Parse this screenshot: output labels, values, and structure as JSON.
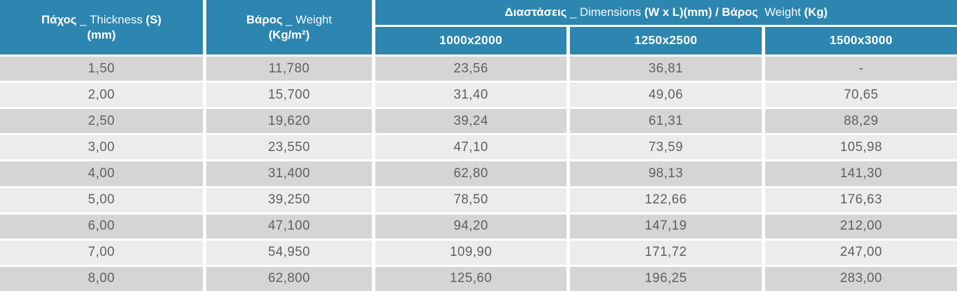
{
  "table": {
    "headers": {
      "thickness": {
        "line1": [
          {
            "t": "Πάχος",
            "b": true
          },
          {
            "t": " _ Thickness ",
            "b": false
          },
          {
            "t": "(S)",
            "b": true
          }
        ],
        "line2": [
          {
            "t": "(mm)",
            "b": true
          }
        ]
      },
      "weight": {
        "line1": [
          {
            "t": "Βάρος",
            "b": true
          },
          {
            "t": " _ Weight",
            "b": false
          }
        ],
        "line2": [
          {
            "t": "(Kg/m²)",
            "b": true
          }
        ]
      },
      "dimensions": {
        "line1": [
          {
            "t": "Διαστάσεις",
            "b": true
          },
          {
            "t": " _ Dimensions ",
            "b": false
          },
          {
            "t": "(W x L)(mm) / Βάρος",
            "b": true
          },
          {
            "t": "  Weight ",
            "b": false
          },
          {
            "t": "(Kg)",
            "b": true
          }
        ]
      }
    },
    "sub_headers": [
      "1000x2000",
      "1250x2500",
      "1500x3000"
    ],
    "rows": [
      [
        "1,50",
        "11,780",
        "23,56",
        "36,81",
        "-"
      ],
      [
        "2,00",
        "15,700",
        "31,40",
        "49,06",
        "70,65"
      ],
      [
        "2,50",
        "19,620",
        "39,24",
        "61,31",
        "88,29"
      ],
      [
        "3,00",
        "23,550",
        "47,10",
        "73,59",
        "105,98"
      ],
      [
        "4,00",
        "31,400",
        "62,80",
        "98,13",
        "141,30"
      ],
      [
        "5,00",
        "39,250",
        "78,50",
        "122,66",
        "176,63"
      ],
      [
        "6,00",
        "47,100",
        "94,20",
        "147,19",
        "212,00"
      ],
      [
        "7,00",
        "54,950",
        "109,90",
        "171,72",
        "247,00"
      ],
      [
        "8,00",
        "62,800",
        "125,60",
        "196,25",
        "283,00"
      ]
    ]
  },
  "colors": {
    "header_bg": "#2D86AF",
    "row_dark": "#D7D5D3",
    "row_light": "#EDECEA",
    "cell_text": "#5F5F5F",
    "header_text": "#FFFFFF",
    "gap": "#FFFFFF"
  },
  "chart_data": {
    "type": "table",
    "title": "Πάχος/Βάρος φύλλων — Thickness/Weight sheet table",
    "columns": [
      "Πάχος _ Thickness (S) (mm)",
      "Βάρος _ Weight (Kg/m²)",
      "Διαστάσεις _ Dimensions (W x L)(mm) / Βάρος Weight (Kg) — 1000x2000",
      "Διαστάσεις _ Dimensions (W x L)(mm) / Βάρος Weight (Kg) — 1250x2500",
      "Διαστάσεις _ Dimensions (W x L)(mm) / Βάρος Weight (Kg) — 1500x3000"
    ],
    "rows": [
      [
        "1,50",
        "11,780",
        "23,56",
        "36,81",
        "-"
      ],
      [
        "2,00",
        "15,700",
        "31,40",
        "49,06",
        "70,65"
      ],
      [
        "2,50",
        "19,620",
        "39,24",
        "61,31",
        "88,29"
      ],
      [
        "3,00",
        "23,550",
        "47,10",
        "73,59",
        "105,98"
      ],
      [
        "4,00",
        "31,400",
        "62,80",
        "98,13",
        "141,30"
      ],
      [
        "5,00",
        "39,250",
        "78,50",
        "122,66",
        "176,63"
      ],
      [
        "6,00",
        "47,100",
        "94,20",
        "147,19",
        "212,00"
      ],
      [
        "7,00",
        "54,950",
        "109,90",
        "171,72",
        "247,00"
      ],
      [
        "8,00",
        "62,800",
        "125,60",
        "196,25",
        "283,00"
      ]
    ],
    "layout": {
      "striped_rows": true,
      "stripe_order": "dark-first",
      "header_spans": {
        "thickness": {
          "rowspan": 2
        },
        "weight": {
          "rowspan": 2
        },
        "dimensions": {
          "colspan": 3
        }
      }
    }
  }
}
